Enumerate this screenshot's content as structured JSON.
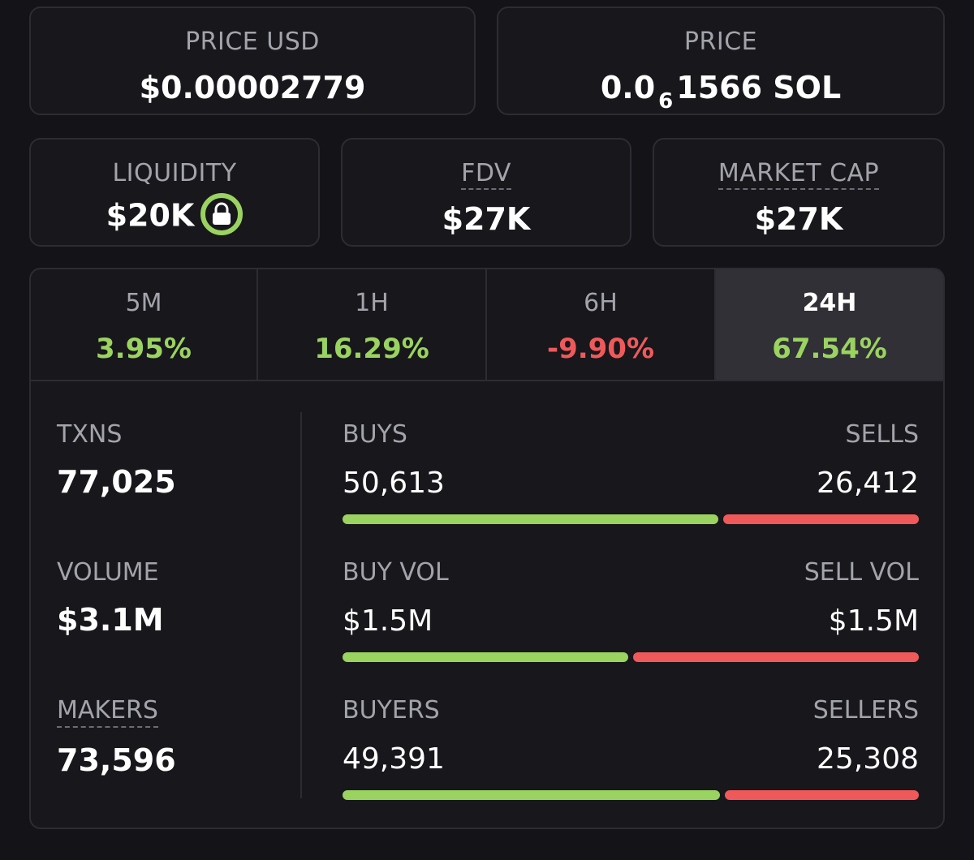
{
  "price_usd": {
    "label": "PRICE USD",
    "value": "$0.00002779"
  },
  "price_sol": {
    "label": "PRICE",
    "prefix": "0.0",
    "zeros": "6",
    "digits": "1566",
    "unit": "SOL"
  },
  "liquidity": {
    "label": "LIQUIDITY",
    "value": "$20K"
  },
  "fdv": {
    "label": "FDV",
    "value": "$27K"
  },
  "market_cap": {
    "label": "MARKET CAP",
    "value": "$27K"
  },
  "colors": {
    "positive": "#9ad35f",
    "negative": "#f0595a",
    "muted": "#a3a4ab"
  },
  "tabs": [
    {
      "label": "5M",
      "change": "3.95%"
    },
    {
      "label": "1H",
      "change": "16.29%"
    },
    {
      "label": "6H",
      "change": "-9.90%"
    },
    {
      "label": "24H",
      "change": "67.54%"
    }
  ],
  "metrics": {
    "txns": {
      "label": "TXNS",
      "value": "77,025"
    },
    "volume": {
      "label": "VOLUME",
      "value": "$3.1M"
    },
    "makers": {
      "label": "MAKERS",
      "value": "73,596"
    }
  },
  "splits": {
    "txns": {
      "left_label": "BUYS",
      "left_value": "50,613",
      "right_label": "SELLS",
      "right_value": "26,412",
      "buy_ratio": 0.657
    },
    "volume": {
      "left_label": "BUY VOL",
      "left_value": "$1.5M",
      "right_label": "SELL VOL",
      "right_value": "$1.5M",
      "buy_ratio": 0.5
    },
    "makers": {
      "left_label": "BUYERS",
      "left_value": "49,391",
      "right_label": "SELLERS",
      "right_value": "25,308",
      "buy_ratio": 0.661
    }
  }
}
